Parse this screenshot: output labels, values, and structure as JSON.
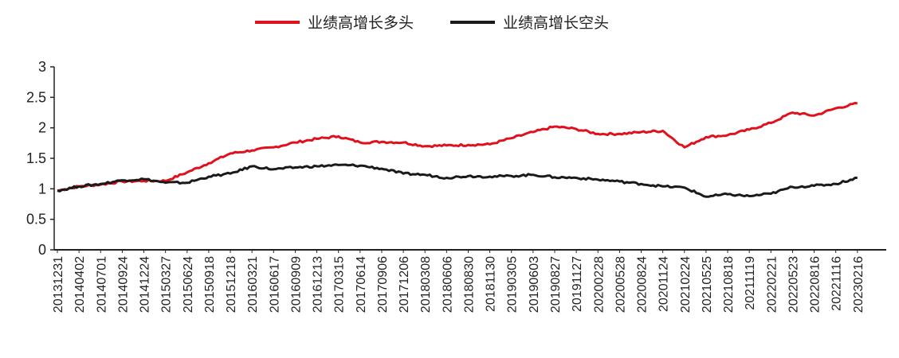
{
  "chart_data": {
    "type": "line",
    "title": "",
    "xlabel": "",
    "ylabel": "",
    "ylim": [
      0,
      3
    ],
    "yticks": [
      "0",
      "0.5",
      "1",
      "1.5",
      "2",
      "2.5",
      "3"
    ],
    "grid": false,
    "legend": "top-center",
    "x": [
      "20131231",
      "20140402",
      "20140701",
      "20140924",
      "20141224",
      "20150327",
      "20150624",
      "20150918",
      "20151218",
      "20160321",
      "20160617",
      "20160909",
      "20161213",
      "20170315",
      "20170614",
      "20170906",
      "20171206",
      "20180308",
      "20180606",
      "20180830",
      "20181130",
      "20190305",
      "20190603",
      "20190827",
      "20191127",
      "20200228",
      "20200528",
      "20200824",
      "20201124",
      "20210224",
      "20210525",
      "20210818",
      "20211119",
      "20220221",
      "20220523",
      "20220816",
      "20221116",
      "20230216"
    ],
    "series": [
      {
        "name": "业绩高增长多头",
        "color": "#e0101c",
        "values": [
          0.97,
          1.04,
          1.07,
          1.12,
          1.13,
          1.13,
          1.27,
          1.42,
          1.58,
          1.63,
          1.68,
          1.76,
          1.82,
          1.86,
          1.76,
          1.77,
          1.76,
          1.7,
          1.71,
          1.72,
          1.73,
          1.83,
          1.93,
          2.02,
          1.98,
          1.9,
          1.9,
          1.93,
          1.95,
          1.68,
          1.85,
          1.88,
          1.97,
          2.08,
          2.25,
          2.2,
          2.32,
          2.4
        ]
      },
      {
        "name": "业绩高增长空头",
        "color": "#1a1a1a",
        "values": [
          0.97,
          1.04,
          1.08,
          1.14,
          1.16,
          1.1,
          1.1,
          1.2,
          1.25,
          1.37,
          1.32,
          1.35,
          1.37,
          1.39,
          1.38,
          1.33,
          1.25,
          1.23,
          1.18,
          1.21,
          1.2,
          1.21,
          1.23,
          1.19,
          1.18,
          1.15,
          1.12,
          1.08,
          1.04,
          1.02,
          0.87,
          0.91,
          0.88,
          0.92,
          1.03,
          1.05,
          1.08,
          1.18
        ]
      }
    ]
  }
}
